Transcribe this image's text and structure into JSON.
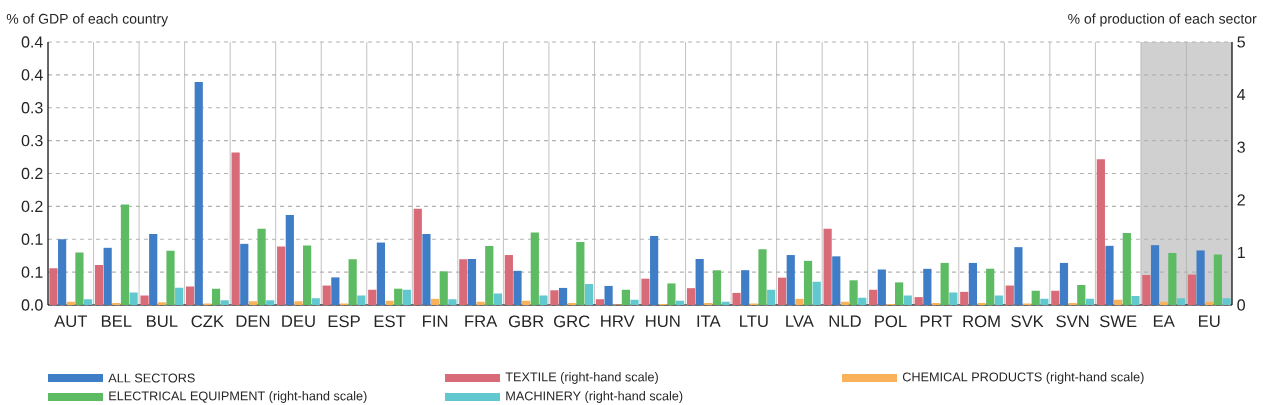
{
  "chart_data": {
    "type": "bar",
    "ylabel": "% of GDP of each country",
    "y2label": "% of production of each sector",
    "categories": [
      "AUT",
      "BEL",
      "BUL",
      "CZK",
      "DEN",
      "DEU",
      "ESP",
      "EST",
      "FIN",
      "FRA",
      "GBR",
      "GRC",
      "HRV",
      "HUN",
      "ITA",
      "LTU",
      "LVA",
      "NLD",
      "POL",
      "PRT",
      "ROM",
      "SVK",
      "SVN",
      "SWE",
      "EA",
      "EU"
    ],
    "series": [
      {
        "name": "ALL SECTORS",
        "color": "#3f7ec6",
        "values": [
          0.1,
          0.087,
          0.108,
          0.339,
          0.093,
          0.137,
          0.042,
          0.095,
          0.108,
          0.07,
          0.052,
          0.026,
          0.029,
          0.105,
          0.07,
          0.053,
          0.076,
          0.074,
          0.054,
          0.055,
          0.064,
          0.088,
          0.064,
          0.09,
          0.091,
          0.083
        ]
      },
      {
        "name": "TEXTILE (right-hand scale)",
        "color": "#d96b78",
        "axis": "y2",
        "values": [
          0.7,
          0.76,
          0.18,
          0.35,
          2.9,
          1.11,
          0.37,
          0.29,
          1.83,
          0.87,
          0.95,
          0.28,
          0.11,
          0.5,
          0.32,
          0.23,
          0.52,
          1.45,
          0.29,
          0.15,
          0.25,
          0.37,
          0.27,
          2.77,
          0.57,
          0.58
        ]
      },
      {
        "name": "CHEMICAL PRODUCTS (right-hand scale)",
        "color": "#f9b25a",
        "axis": "y2",
        "values": [
          0.06,
          0.04,
          0.05,
          0.03,
          0.07,
          0.07,
          0.03,
          0.08,
          0.12,
          0.06,
          0.08,
          0.04,
          0.01,
          0.02,
          0.04,
          0.03,
          0.12,
          0.06,
          0.02,
          0.04,
          0.04,
          0.03,
          0.04,
          0.1,
          0.06,
          0.06
        ]
      },
      {
        "name": "ELECTRICAL EQUIPMENT (right-hand scale)",
        "color": "#5dbb63",
        "axis": "y2",
        "values": [
          1.0,
          1.91,
          1.03,
          0.31,
          1.45,
          1.13,
          0.87,
          0.31,
          0.64,
          1.12,
          1.38,
          1.2,
          0.29,
          0.41,
          0.66,
          1.06,
          0.84,
          0.47,
          0.43,
          0.8,
          0.69,
          0.27,
          0.38,
          1.37,
          0.99,
          0.96
        ]
      },
      {
        "name": "MACHINERY (right-hand scale)",
        "color": "#62c8d0",
        "axis": "y2",
        "values": [
          0.11,
          0.24,
          0.33,
          0.09,
          0.09,
          0.13,
          0.18,
          0.29,
          0.11,
          0.22,
          0.18,
          0.4,
          0.1,
          0.08,
          0.06,
          0.29,
          0.44,
          0.14,
          0.18,
          0.24,
          0.18,
          0.12,
          0.12,
          0.17,
          0.13,
          0.13
        ]
      }
    ],
    "ylim": [
      0,
      0.4
    ],
    "yticks": [
      {
        "value": 0,
        "label": "0.0"
      },
      {
        "value": 0.05,
        "label": "0.1"
      },
      {
        "value": 0.1,
        "label": "0.1"
      },
      {
        "value": 0.15,
        "label": "0.2"
      },
      {
        "value": 0.2,
        "label": "0.2"
      },
      {
        "value": 0.25,
        "label": "0.3"
      },
      {
        "value": 0.3,
        "label": "0.3"
      },
      {
        "value": 0.35,
        "label": "0.4"
      },
      {
        "value": 0.4,
        "label": "0.4"
      }
    ],
    "y2lim": [
      0,
      5
    ],
    "y2ticks": [
      0,
      1,
      2,
      3,
      4,
      5
    ],
    "bands": [
      {
        "axis": "x",
        "from": "EA",
        "to": "EU",
        "color": "#d0d0d0"
      }
    ],
    "grid": true,
    "legend": "bottom"
  }
}
